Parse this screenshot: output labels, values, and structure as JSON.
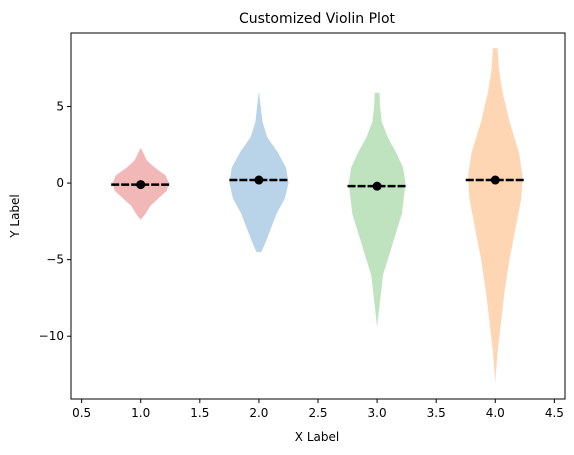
{
  "chart_data": {
    "type": "violin",
    "title": "Customized Violin Plot",
    "xlabel": "X Label",
    "ylabel": "Y Label",
    "xlim": [
      0.41,
      4.59
    ],
    "ylim": [
      -14.1,
      9.8
    ],
    "xticks": [
      0.5,
      1.0,
      1.5,
      2.0,
      2.5,
      3.0,
      3.5,
      4.0,
      4.5
    ],
    "xtick_labels": [
      "0.5",
      "1.0",
      "1.5",
      "2.0",
      "2.5",
      "3.0",
      "3.5",
      "4.0",
      "4.5"
    ],
    "yticks": [
      5,
      0,
      -5,
      -10
    ],
    "ytick_labels": [
      "5",
      "0",
      "−5",
      "−10"
    ],
    "grid": false,
    "series": [
      {
        "position": 1,
        "color": "#f2b8b8",
        "min": -2.4,
        "max": 2.3,
        "mean": -0.1,
        "median": -0.1,
        "widths": [
          [
            -2.4,
            0.0
          ],
          [
            -2.0,
            0.04
          ],
          [
            -1.5,
            0.08
          ],
          [
            -1.0,
            0.15
          ],
          [
            -0.5,
            0.22
          ],
          [
            0.0,
            0.24
          ],
          [
            0.5,
            0.21
          ],
          [
            1.0,
            0.12
          ],
          [
            1.5,
            0.05
          ],
          [
            2.0,
            0.02
          ],
          [
            2.3,
            0.0
          ]
        ]
      },
      {
        "position": 2,
        "color": "#b9d4e9",
        "min": -4.5,
        "max": 6.0,
        "mean": 0.2,
        "median": 0.2,
        "widths": [
          [
            -4.5,
            0.02
          ],
          [
            -4.0,
            0.05
          ],
          [
            -3.0,
            0.1
          ],
          [
            -2.0,
            0.15
          ],
          [
            -1.0,
            0.22
          ],
          [
            0.0,
            0.25
          ],
          [
            1.0,
            0.23
          ],
          [
            2.0,
            0.16
          ],
          [
            3.0,
            0.07
          ],
          [
            4.0,
            0.03
          ],
          [
            5.0,
            0.015
          ],
          [
            6.0,
            0.0
          ]
        ]
      },
      {
        "position": 3,
        "color": "#bfe3bf",
        "min": -9.4,
        "max": 5.9,
        "mean": -0.2,
        "median": -0.2,
        "widths": [
          [
            -9.4,
            0.0
          ],
          [
            -8.0,
            0.02
          ],
          [
            -6.0,
            0.05
          ],
          [
            -4.0,
            0.13
          ],
          [
            -2.0,
            0.21
          ],
          [
            0.0,
            0.24
          ],
          [
            1.0,
            0.22
          ],
          [
            2.0,
            0.16
          ],
          [
            3.0,
            0.09
          ],
          [
            4.0,
            0.04
          ],
          [
            5.0,
            0.025
          ],
          [
            5.9,
            0.02
          ]
        ]
      },
      {
        "position": 4,
        "color": "#fed6b4",
        "min": -13.0,
        "max": 8.8,
        "mean": 0.2,
        "median": 0.2,
        "widths": [
          [
            -13.0,
            0.0
          ],
          [
            -11.0,
            0.02
          ],
          [
            -9.0,
            0.05
          ],
          [
            -7.0,
            0.08
          ],
          [
            -5.0,
            0.12
          ],
          [
            -3.0,
            0.17
          ],
          [
            -1.0,
            0.22
          ],
          [
            0.5,
            0.23
          ],
          [
            2.0,
            0.2
          ],
          [
            4.0,
            0.12
          ],
          [
            6.0,
            0.06
          ],
          [
            7.5,
            0.03
          ],
          [
            8.8,
            0.02
          ]
        ]
      }
    ]
  }
}
